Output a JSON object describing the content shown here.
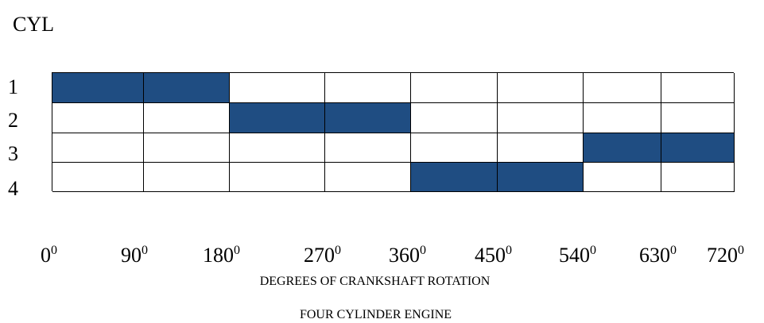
{
  "header": {
    "cylinder_label": "CYL"
  },
  "cylinders": [
    {
      "label": "1",
      "active_segments": [
        0,
        1
      ]
    },
    {
      "label": "2",
      "active_segments": [
        2,
        3
      ]
    },
    {
      "label": "3",
      "active_segments": [
        6,
        7
      ]
    },
    {
      "label": "4",
      "active_segments": [
        4,
        5
      ]
    }
  ],
  "axis": {
    "ticks": [
      {
        "value": "0",
        "sup": "0"
      },
      {
        "value": "90",
        "sup": "0"
      },
      {
        "value": "180",
        "sup": "0"
      },
      {
        "value": "270",
        "sup": "0"
      },
      {
        "value": "360",
        "sup": "0"
      },
      {
        "value": "450",
        "sup": "0"
      },
      {
        "value": "540",
        "sup": "0"
      },
      {
        "value": "630",
        "sup": "0"
      },
      {
        "value": "720",
        "sup": "0"
      }
    ],
    "title": "DEGREES OF CRANKSHAFT ROTATION"
  },
  "caption": "FOUR CYLINDER ENGINE",
  "colors": {
    "active_fill": "#1f4d82"
  }
}
